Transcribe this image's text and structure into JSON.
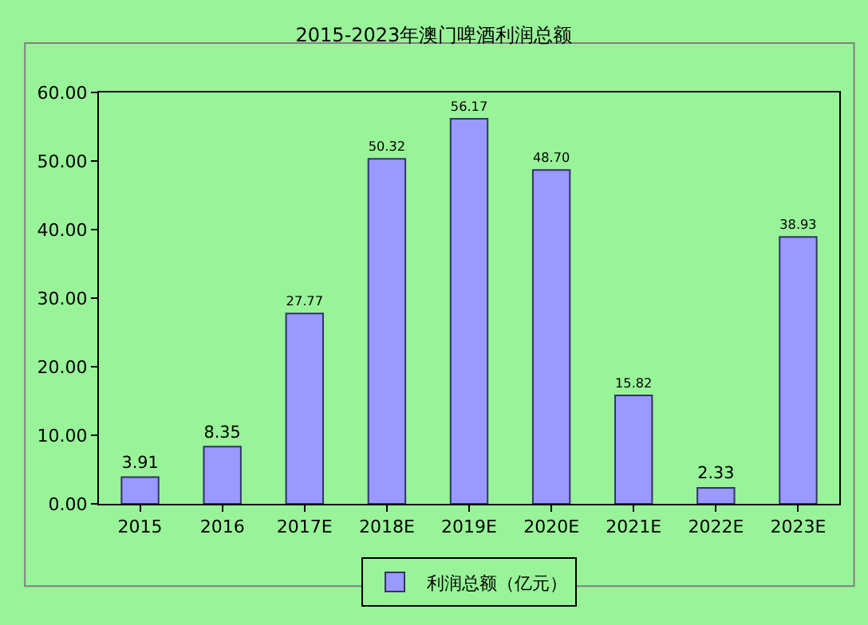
{
  "chart_data": {
    "type": "bar",
    "title": "2015-2023年澳门啤酒利润总额",
    "categories": [
      "2015",
      "2016",
      "2017E",
      "2018E",
      "2019E",
      "2020E",
      "2021E",
      "2022E",
      "2023E"
    ],
    "series": [
      {
        "name": "利润总额（亿元）",
        "color": "#9999ff",
        "values": [
          3.91,
          8.35,
          27.77,
          50.32,
          56.17,
          48.7,
          15.82,
          2.33,
          38.93
        ],
        "value_labels": [
          "3.91",
          "8.35",
          "27.77",
          "50.32",
          "56.17",
          "48.70",
          "15.82",
          "2.33",
          "38.93"
        ]
      }
    ],
    "ylim": [
      0,
      60
    ],
    "yticks": [
      {
        "value": 0,
        "label": "0.00"
      },
      {
        "value": 10,
        "label": "10.00"
      },
      {
        "value": 20,
        "label": "20.00"
      },
      {
        "value": 30,
        "label": "30.00"
      },
      {
        "value": 40,
        "label": "40.00"
      },
      {
        "value": 50,
        "label": "50.00"
      },
      {
        "value": 60,
        "label": "60.00"
      }
    ],
    "grid": false,
    "legend": "bottom"
  }
}
